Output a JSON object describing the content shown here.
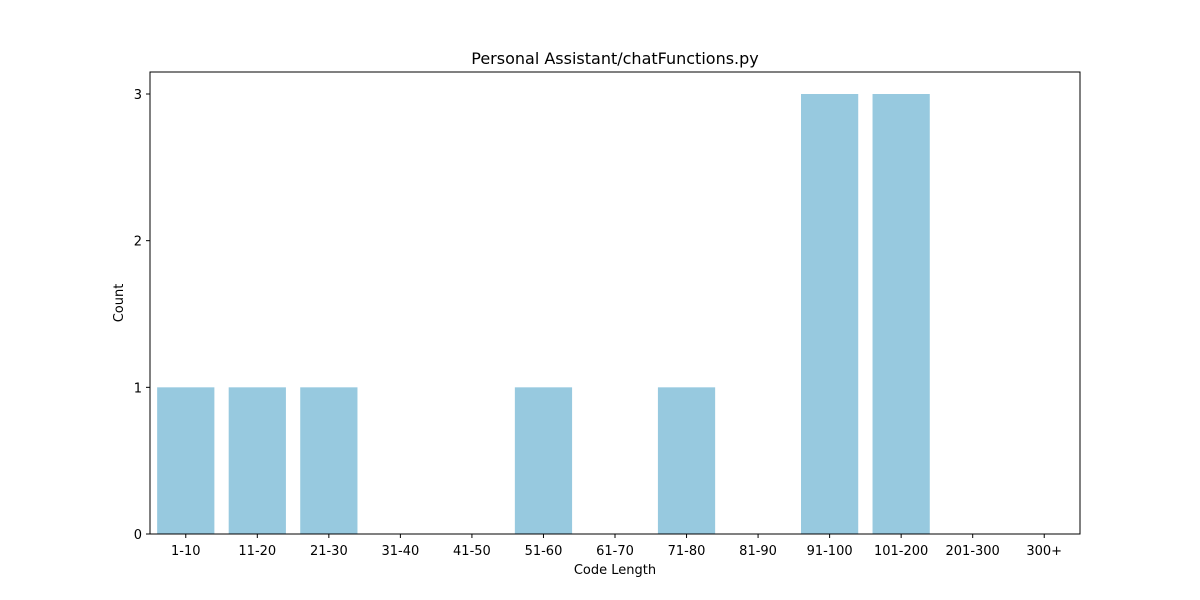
{
  "chart_data": {
    "type": "bar",
    "title": "Personal Assistant/chatFunctions.py",
    "xlabel": "Code Length",
    "ylabel": "Count",
    "categories": [
      "1-10",
      "11-20",
      "21-30",
      "31-40",
      "41-50",
      "51-60",
      "61-70",
      "71-80",
      "81-90",
      "91-100",
      "101-200",
      "201-300",
      "300+"
    ],
    "values": [
      1,
      1,
      1,
      0,
      0,
      1,
      0,
      1,
      0,
      3,
      3,
      0,
      0
    ],
    "ylim": [
      0,
      3.15
    ],
    "yticks": [
      0,
      1,
      2,
      3
    ],
    "bar_color": "#97c9df",
    "grid": false,
    "legend": "none"
  }
}
